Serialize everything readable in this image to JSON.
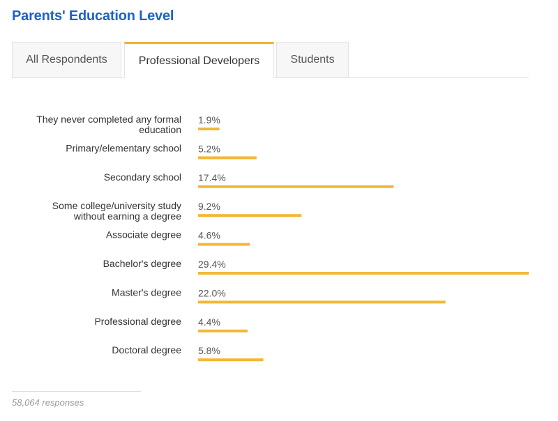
{
  "header": {
    "title": "Parents' Education Level"
  },
  "tabs": [
    {
      "label": "All Respondents",
      "active": false
    },
    {
      "label": "Professional Developers",
      "active": true
    },
    {
      "label": "Students",
      "active": false
    }
  ],
  "chart_data": {
    "type": "bar",
    "orientation": "horizontal",
    "categories": [
      "They never completed any formal education",
      "Primary/elementary school",
      "Secondary school",
      "Some college/university study without earning a degree",
      "Associate degree",
      "Bachelor's degree",
      "Master's degree",
      "Professional degree",
      "Doctoral degree"
    ],
    "values": [
      1.9,
      5.2,
      17.4,
      9.2,
      4.6,
      29.4,
      22.0,
      4.4,
      5.8
    ],
    "value_labels": [
      "1.9%",
      "5.2%",
      "17.4%",
      "9.2%",
      "4.6%",
      "29.4%",
      "22.0%",
      "4.4%",
      "5.8%"
    ],
    "unit": "%",
    "bar_color": "#f2b836",
    "xlim": [
      0,
      29.4
    ],
    "grid": false,
    "legend": "none"
  },
  "footer": {
    "responses": "58,064 responses"
  },
  "colors": {
    "title": "#1c63c9",
    "accent": "#f0b232"
  }
}
